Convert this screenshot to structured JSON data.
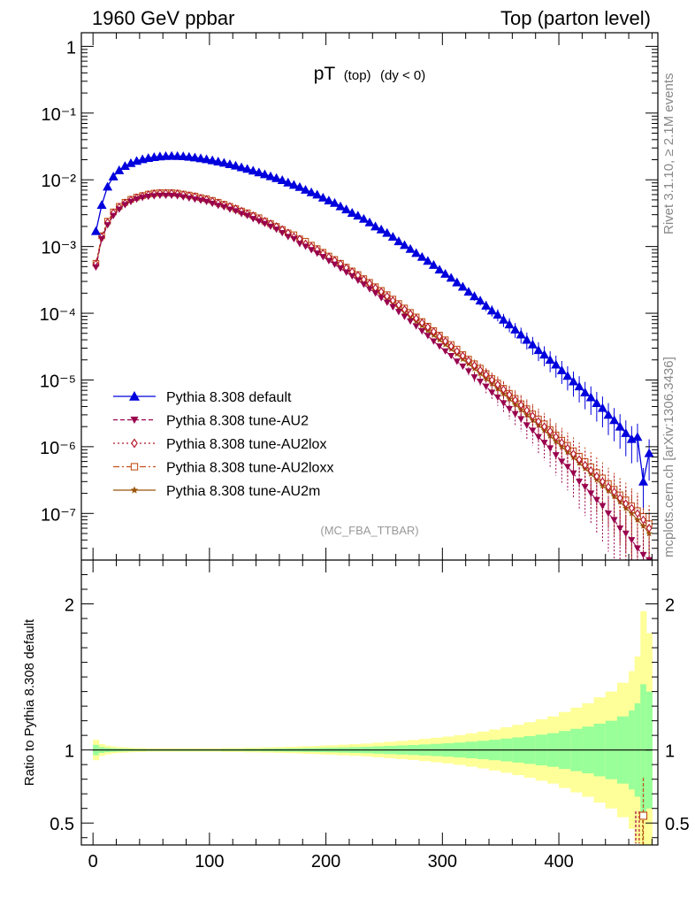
{
  "header": {
    "left": "1960 GeV ppbar",
    "right": "Top (parton level)"
  },
  "plot_title": {
    "main": "pT",
    "sub1": "(top)",
    "sub2": "(dy < 0)"
  },
  "side_labels": {
    "rivet": "Rivet 3.1.10, ≥ 2.1M events",
    "mcplots": "mcplots.cern.ch [arXiv:1306.3436]"
  },
  "analysis_tag": "(MC_FBA_TTBAR)",
  "colors": {
    "default": "#0000dd",
    "au2": "#99004d",
    "au2lox": "#b3132a",
    "au2loxx": "#c0521a",
    "au2m": "#9a5508",
    "band_yellow": "#ffff99",
    "band_green": "#99ff99"
  },
  "chart_data": [
    {
      "type": "line",
      "panel": "main",
      "y_scale": "log",
      "xlim": [
        -10,
        485
      ],
      "ylim": [
        2e-08,
        1.6
      ],
      "ytick_labels": [
        "1",
        "10⁻¹",
        "10⁻²",
        "10⁻³",
        "10⁻⁴",
        "10⁻⁵",
        "10⁻⁶",
        "10⁻⁷"
      ],
      "legend_position": "lower-left",
      "x": [
        2.5,
        7.5,
        12.5,
        17.5,
        22.5,
        27.5,
        32.5,
        37.5,
        42.5,
        47.5,
        52.5,
        57.5,
        62.5,
        67.5,
        72.5,
        77.5,
        82.5,
        87.5,
        92.5,
        97.5,
        102.5,
        107.5,
        112.5,
        117.5,
        122.5,
        127.5,
        132.5,
        137.5,
        142.5,
        147.5,
        152.5,
        157.5,
        162.5,
        167.5,
        172.5,
        177.5,
        182.5,
        187.5,
        192.5,
        197.5,
        202.5,
        207.5,
        212.5,
        217.5,
        222.5,
        227.5,
        232.5,
        237.5,
        242.5,
        247.5,
        252.5,
        257.5,
        262.5,
        267.5,
        272.5,
        277.5,
        282.5,
        287.5,
        292.5,
        297.5,
        302.5,
        307.5,
        312.5,
        317.5,
        322.5,
        327.5,
        332.5,
        337.5,
        342.5,
        347.5,
        352.5,
        357.5,
        362.5,
        367.5,
        372.5,
        377.5,
        382.5,
        387.5,
        392.5,
        397.5,
        402.5,
        407.5,
        412.5,
        417.5,
        422.5,
        427.5,
        432.5,
        437.5,
        442.5,
        447.5,
        452.5,
        457.5,
        462.5,
        467.5,
        472.5,
        477.5
      ],
      "series": [
        {
          "name": "Pythia 8.308 default",
          "color": "#0000dd",
          "marker": "triangle-up",
          "line": "solid",
          "values": [
            0.0017,
            0.0042,
            0.0079,
            0.0112,
            0.0139,
            0.0161,
            0.0178,
            0.0192,
            0.0203,
            0.0212,
            0.0219,
            0.0224,
            0.0227,
            0.0228,
            0.0227,
            0.0225,
            0.0221,
            0.0216,
            0.021,
            0.0203,
            0.0196,
            0.0188,
            0.018,
            0.0171,
            0.0163,
            0.0154,
            0.0146,
            0.0137,
            0.0129,
            0.0121,
            0.0113,
            0.0106,
            0.0099,
            0.0091,
            0.0084,
            0.0078,
            0.0071,
            0.0065,
            0.006,
            0.0054,
            0.0049,
            0.0045,
            0.004,
            0.0036,
            0.0032,
            0.0029,
            0.0026,
            0.0023,
            0.002,
            0.0018,
            0.0016,
            0.0014,
            0.0012,
            0.00105,
            0.00092,
            0.0008,
            0.0007,
            0.00061,
            0.00053,
            0.00045,
            0.00039,
            0.00034,
            0.00029,
            0.00025,
            0.00021,
            0.00018,
            0.000155,
            0.00013,
            0.00011,
            9.5e-05,
            8e-05,
            6.8e-05,
            5.7e-05,
            4.8e-05,
            4e-05,
            3.4e-05,
            2.8e-05,
            2.4e-05,
            2e-05,
            1.7e-05,
            1.4e-05,
            1.15e-05,
            9.5e-06,
            8e-06,
            6.5e-06,
            5.5e-06,
            4.5e-06,
            3.8e-06,
            3e-06,
            2.5e-06,
            2e-06,
            1.6e-06,
            1.3e-06,
            1.4e-06,
            3e-07,
            8e-07
          ]
        },
        {
          "name": "Pythia 8.308 tune-AU2",
          "color": "#99004d",
          "marker": "triangle-down",
          "line": "dashed",
          "values": [
            0.00049,
            0.0013,
            0.0021,
            0.0029,
            0.0036,
            0.0042,
            0.0047,
            0.0051,
            0.0054,
            0.0056,
            0.0057,
            0.0058,
            0.0058,
            0.0058,
            0.0057,
            0.0055,
            0.0053,
            0.0051,
            0.0049,
            0.0047,
            0.0044,
            0.0041,
            0.0039,
            0.0036,
            0.0034,
            0.0031,
            0.0029,
            0.0026,
            0.0024,
            0.0022,
            0.002,
            0.0018,
            0.0016,
            0.0014,
            0.0013,
            0.0011,
            0.001,
            0.00089,
            0.00079,
            0.0007,
            0.00061,
            0.00054,
            0.00047,
            0.00041,
            0.00036,
            0.00031,
            0.00027,
            0.00023,
            0.0002,
            0.00017,
            0.000145,
            0.000124,
            0.000105,
            8.9e-05,
            7.6e-05,
            6.4e-05,
            5.4e-05,
            4.6e-05,
            3.8e-05,
            3.2e-05,
            2.7e-05,
            2.3e-05,
            1.9e-05,
            1.6e-05,
            1.35e-05,
            1.1e-05,
            9.5e-06,
            8e-06,
            6.5e-06,
            5.5e-06,
            4.5e-06,
            3.7e-06,
            3.1e-06,
            2.6e-06,
            2.1e-06,
            1.75e-06,
            1.4e-06,
            1.15e-06,
            9.5e-07,
            7.5e-07,
            6e-07,
            5e-07,
            4e-07,
            3e-07,
            2.5e-07,
            2e-07,
            1.6e-07,
            1.3e-07,
            1e-07,
            8e-08,
            6e-08,
            5e-08,
            4e-08,
            3e-08,
            2.4e-08,
            2e-08
          ]
        }
      ],
      "series_positive_groups": [],
      "series_extra": [
        {
          "name": "Pythia 8.308 tune-AU2lox",
          "color": "#b3132a",
          "marker": "diamond-open",
          "line": "dotted",
          "values": [
            0.00055,
            0.0014,
            0.0023,
            0.0032,
            0.0039,
            0.0045,
            0.005,
            0.0054,
            0.0057,
            0.006,
            0.0062,
            0.0063,
            0.0063,
            0.0063,
            0.0062,
            0.006,
            0.0058,
            0.0056,
            0.0053,
            0.0051,
            0.0048,
            0.0045,
            0.0042,
            0.004,
            0.0037,
            0.0034,
            0.0031,
            0.0029,
            0.0026,
            0.0024,
            0.0022,
            0.002,
            0.0018,
            0.0016,
            0.0014,
            0.0013,
            0.0011,
            0.001,
            0.0009,
            0.00079,
            0.0007,
            0.00062,
            0.00055,
            0.00048,
            0.00042,
            0.00037,
            0.00032,
            0.00028,
            0.00024,
            0.00021,
            0.00018,
            0.000155,
            0.000133,
            0.000114,
            9.8e-05,
            8.4e-05,
            7.2e-05,
            6.2e-05,
            5.3e-05,
            4.5e-05,
            3.8e-05,
            3.2e-05,
            2.7e-05,
            2.3e-05,
            1.95e-05,
            1.65e-05,
            1.4e-05,
            1.2e-05,
            1e-05,
            8.5e-06,
            7.2e-06,
            6e-06,
            5e-06,
            4.2e-06,
            3.5e-06,
            2.9e-06,
            2.4e-06,
            2e-06,
            1.7e-06,
            1.4e-06,
            1.15e-06,
            9.5e-07,
            7.8e-07,
            6.4e-07,
            5.3e-07,
            4.4e-07,
            3.6e-07,
            3e-07,
            2.5e-07,
            2.1e-07,
            1.7e-07,
            1.4e-07,
            1.2e-07,
            1e-07,
            8e-08,
            6e-08
          ]
        },
        {
          "name": "Pythia 8.308 tune-AU2loxx",
          "color": "#c0521a",
          "marker": "square-open",
          "line": "dashdot",
          "values": [
            0.00056,
            0.00145,
            0.0024,
            0.0033,
            0.004,
            0.0046,
            0.0051,
            0.0055,
            0.0058,
            0.0061,
            0.0063,
            0.0064,
            0.0064,
            0.0064,
            0.0063,
            0.0061,
            0.0059,
            0.0057,
            0.0054,
            0.0052,
            0.0049,
            0.0046,
            0.0043,
            0.004,
            0.0037,
            0.0034,
            0.0032,
            0.0029,
            0.0027,
            0.0024,
            0.0022,
            0.002,
            0.0018,
            0.0016,
            0.0015,
            0.0013,
            0.0012,
            0.00105,
            0.00093,
            0.00082,
            0.00072,
            0.00064,
            0.00056,
            0.00049,
            0.00043,
            0.00038,
            0.00033,
            0.00029,
            0.00025,
            0.00022,
            0.00019,
            0.000163,
            0.00014,
            0.00012,
            0.000103,
            8.8e-05,
            7.5e-05,
            6.4e-05,
            5.5e-05,
            4.7e-05,
            4e-05,
            3.4e-05,
            2.9e-05,
            2.4e-05,
            2.05e-05,
            1.75e-05,
            1.5e-05,
            1.25e-05,
            1.05e-05,
            9e-06,
            7.5e-06,
            6.3e-06,
            5.3e-06,
            4.4e-06,
            3.7e-06,
            3.1e-06,
            2.6e-06,
            2.2e-06,
            1.8e-06,
            1.5e-06,
            1.25e-06,
            1.05e-06,
            8.7e-07,
            7.2e-07,
            6e-07,
            5e-07,
            4.1e-07,
            3.4e-07,
            2.8e-07,
            2.3e-07,
            1.9e-07,
            1.6e-07,
            1.3e-07,
            1.1e-07,
            9e-08,
            7e-08
          ]
        },
        {
          "name": "Pythia 8.308 tune-AU2m",
          "color": "#9a5508",
          "marker": "star",
          "line": "solid",
          "values": [
            0.00052,
            0.00135,
            0.0022,
            0.0031,
            0.0038,
            0.0044,
            0.0049,
            0.0053,
            0.0056,
            0.0058,
            0.006,
            0.0061,
            0.0061,
            0.0061,
            0.006,
            0.0058,
            0.0056,
            0.0054,
            0.0051,
            0.0049,
            0.0046,
            0.0043,
            0.0041,
            0.0038,
            0.0035,
            0.0033,
            0.003,
            0.0028,
            0.0025,
            0.0023,
            0.0021,
            0.0019,
            0.0017,
            0.0015,
            0.0014,
            0.0012,
            0.0011,
            0.00096,
            0.00085,
            0.00075,
            0.00066,
            0.00058,
            0.00051,
            0.00045,
            0.00039,
            0.00034,
            0.0003,
            0.00026,
            0.00022,
            0.00019,
            0.000165,
            0.000142,
            0.000122,
            0.000104,
            8.9e-05,
            7.6e-05,
            6.5e-05,
            5.5e-05,
            4.7e-05,
            4e-05,
            3.4e-05,
            2.9e-05,
            2.45e-05,
            2.05e-05,
            1.75e-05,
            1.48e-05,
            1.25e-05,
            1.05e-05,
            8.8e-06,
            7.4e-06,
            6.2e-06,
            5.2e-06,
            4.3e-06,
            3.6e-06,
            3e-06,
            2.5e-06,
            2.1e-06,
            1.75e-06,
            1.45e-06,
            1.2e-06,
            1e-06,
            8.3e-07,
            6.9e-07,
            5.7e-07,
            4.7e-07,
            3.9e-07,
            3.2e-07,
            2.6e-07,
            2.2e-07,
            1.8e-07,
            1.5e-07,
            1.2e-07,
            1e-07,
            8e-08,
            6.5e-08,
            5e-08
          ]
        }
      ]
    },
    {
      "type": "area",
      "panel": "ratio",
      "ylabel": "Ratio to Pythia 8.308 default",
      "xlim": [
        -10,
        485
      ],
      "ylim": [
        0.35,
        2.3
      ],
      "xtick_labels": [
        "0",
        "100",
        "200",
        "300",
        "400"
      ],
      "ytick_labels": [
        "0.5",
        "1",
        "2"
      ],
      "bins": [
        [
          0,
          5
        ],
        [
          5,
          10
        ],
        [
          10,
          15
        ],
        [
          15,
          20
        ],
        [
          20,
          25
        ],
        [
          25,
          30
        ],
        [
          30,
          35
        ],
        [
          35,
          40
        ],
        [
          40,
          45
        ],
        [
          45,
          50
        ],
        [
          50,
          55
        ],
        [
          55,
          60
        ],
        [
          60,
          65
        ],
        [
          65,
          70
        ],
        [
          70,
          75
        ],
        [
          75,
          80
        ],
        [
          80,
          85
        ],
        [
          85,
          90
        ],
        [
          90,
          95
        ],
        [
          95,
          100
        ],
        [
          100,
          105
        ],
        [
          105,
          110
        ],
        [
          110,
          115
        ],
        [
          115,
          120
        ],
        [
          120,
          125
        ],
        [
          125,
          130
        ],
        [
          130,
          135
        ],
        [
          135,
          140
        ],
        [
          140,
          145
        ],
        [
          145,
          150
        ],
        [
          150,
          155
        ],
        [
          155,
          160
        ],
        [
          160,
          165
        ],
        [
          165,
          170
        ],
        [
          170,
          175
        ],
        [
          175,
          180
        ],
        [
          180,
          185
        ],
        [
          185,
          190
        ],
        [
          190,
          195
        ],
        [
          195,
          200
        ],
        [
          200,
          210
        ],
        [
          210,
          220
        ],
        [
          220,
          230
        ],
        [
          230,
          240
        ],
        [
          240,
          250
        ],
        [
          250,
          260
        ],
        [
          260,
          270
        ],
        [
          270,
          280
        ],
        [
          280,
          290
        ],
        [
          290,
          300
        ],
        [
          300,
          310
        ],
        [
          310,
          320
        ],
        [
          320,
          330
        ],
        [
          330,
          340
        ],
        [
          340,
          350
        ],
        [
          350,
          360
        ],
        [
          360,
          370
        ],
        [
          370,
          380
        ],
        [
          380,
          390
        ],
        [
          390,
          400
        ],
        [
          400,
          410
        ],
        [
          410,
          420
        ],
        [
          420,
          430
        ],
        [
          430,
          440
        ],
        [
          440,
          450
        ],
        [
          450,
          460
        ],
        [
          460,
          465
        ],
        [
          465,
          470
        ],
        [
          470,
          475
        ],
        [
          475,
          480
        ]
      ],
      "green_halfwidth": [
        0.035,
        0.02,
        0.015,
        0.012,
        0.01,
        0.009,
        0.008,
        0.007,
        0.007,
        0.006,
        0.006,
        0.006,
        0.006,
        0.006,
        0.006,
        0.006,
        0.006,
        0.006,
        0.006,
        0.006,
        0.006,
        0.006,
        0.007,
        0.007,
        0.007,
        0.007,
        0.008,
        0.008,
        0.008,
        0.009,
        0.009,
        0.01,
        0.01,
        0.011,
        0.011,
        0.012,
        0.013,
        0.013,
        0.014,
        0.015,
        0.016,
        0.018,
        0.02,
        0.022,
        0.025,
        0.028,
        0.031,
        0.034,
        0.038,
        0.042,
        0.046,
        0.051,
        0.057,
        0.063,
        0.07,
        0.078,
        0.086,
        0.095,
        0.105,
        0.115,
        0.13,
        0.145,
        0.16,
        0.18,
        0.2,
        0.23,
        0.27,
        0.32,
        0.45,
        0.4
      ],
      "yellow_halfwidth": [
        0.07,
        0.04,
        0.03,
        0.024,
        0.02,
        0.018,
        0.016,
        0.014,
        0.014,
        0.012,
        0.012,
        0.012,
        0.012,
        0.012,
        0.012,
        0.012,
        0.012,
        0.012,
        0.012,
        0.012,
        0.012,
        0.012,
        0.014,
        0.014,
        0.014,
        0.014,
        0.016,
        0.016,
        0.016,
        0.018,
        0.018,
        0.02,
        0.02,
        0.022,
        0.022,
        0.024,
        0.026,
        0.026,
        0.028,
        0.03,
        0.032,
        0.036,
        0.04,
        0.044,
        0.05,
        0.056,
        0.062,
        0.068,
        0.076,
        0.084,
        0.092,
        0.102,
        0.114,
        0.126,
        0.14,
        0.156,
        0.172,
        0.19,
        0.21,
        0.23,
        0.26,
        0.29,
        0.32,
        0.36,
        0.4,
        0.46,
        0.54,
        0.64,
        0.95,
        0.8
      ],
      "reference_line": 1,
      "ratio_points": [
        {
          "series": "Pythia 8.308 tune-AU2loxx",
          "x": 472.5,
          "y": 0.55,
          "err_low": 0.2,
          "err_high": 0.26
        }
      ]
    }
  ]
}
